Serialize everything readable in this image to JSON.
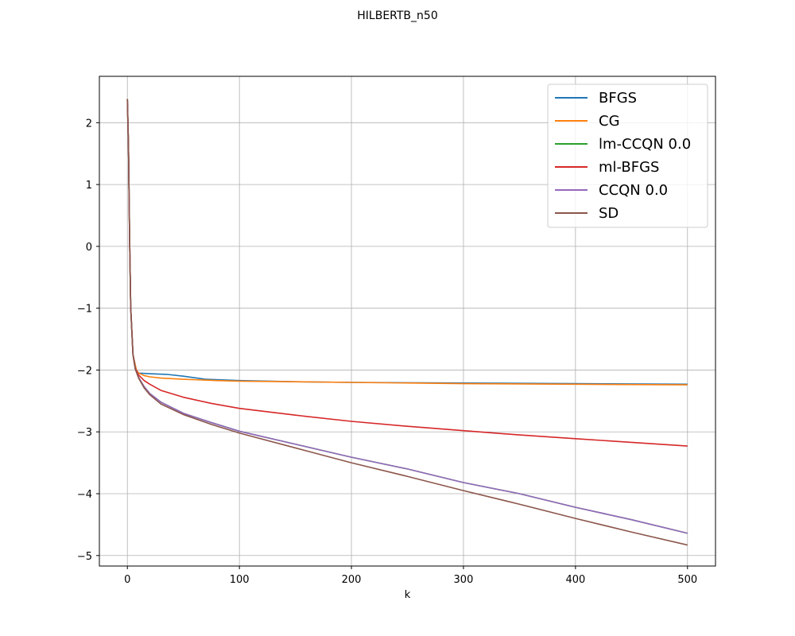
{
  "figure": {
    "title": "HILBERTB_n50"
  },
  "chart_data": {
    "type": "line",
    "title": "HILBERTB_n50",
    "xlabel": "k",
    "ylabel": "",
    "xlim": [
      -25,
      525
    ],
    "ylim": [
      -5.17,
      2.75
    ],
    "xticks": [
      0,
      100,
      200,
      300,
      400,
      500
    ],
    "yticks": [
      -5,
      -4,
      -3,
      -2,
      -1,
      0,
      1,
      2
    ],
    "grid": true,
    "legend_position": "top-right",
    "series": [
      {
        "name": "BFGS",
        "color": "#1f77b4",
        "x": [
          0,
          1,
          2,
          3,
          5,
          8,
          10,
          20,
          35,
          50,
          70,
          100,
          150,
          200,
          300,
          400,
          500
        ],
        "y": [
          2.38,
          1.6,
          0.1,
          -1.0,
          -1.75,
          -2.0,
          -2.05,
          -2.06,
          -2.07,
          -2.1,
          -2.15,
          -2.17,
          -2.19,
          -2.2,
          -2.21,
          -2.22,
          -2.23
        ]
      },
      {
        "name": "CG",
        "color": "#ff7f0e",
        "x": [
          0,
          1,
          2,
          3,
          5,
          8,
          10,
          15,
          20,
          30,
          50,
          80,
          100,
          150,
          200,
          300,
          400,
          500
        ],
        "y": [
          2.38,
          1.6,
          0.1,
          -1.0,
          -1.75,
          -2.0,
          -2.05,
          -2.09,
          -2.11,
          -2.13,
          -2.15,
          -2.17,
          -2.18,
          -2.19,
          -2.2,
          -2.22,
          -2.23,
          -2.24
        ]
      },
      {
        "name": "lm-CCQN 0.0",
        "color": "#2ca02c",
        "x": [
          0,
          1,
          2,
          3,
          5,
          7,
          10,
          15,
          20,
          30,
          50,
          75,
          100,
          150,
          200,
          250,
          300,
          350,
          400,
          450,
          500
        ],
        "y": [
          2.38,
          1.6,
          0.1,
          -1.0,
          -1.75,
          -1.98,
          -2.12,
          -2.27,
          -2.38,
          -2.52,
          -2.7,
          -2.85,
          -2.99,
          -3.2,
          -3.41,
          -3.6,
          -3.82,
          -4.0,
          -4.22,
          -4.42,
          -4.64
        ]
      },
      {
        "name": "ml-BFGS",
        "color": "#d62728",
        "x": [
          0,
          1,
          2,
          3,
          5,
          7,
          10,
          15,
          20,
          30,
          50,
          75,
          100,
          150,
          200,
          250,
          300,
          350,
          400,
          450,
          500
        ],
        "y": [
          2.38,
          1.6,
          0.1,
          -1.0,
          -1.75,
          -1.97,
          -2.08,
          -2.17,
          -2.23,
          -2.33,
          -2.44,
          -2.54,
          -2.62,
          -2.73,
          -2.83,
          -2.91,
          -2.98,
          -3.05,
          -3.11,
          -3.17,
          -3.23
        ]
      },
      {
        "name": "CCQN 0.0",
        "color": "#9467bd",
        "x": [
          0,
          1,
          2,
          3,
          5,
          7,
          10,
          15,
          20,
          30,
          50,
          75,
          100,
          150,
          200,
          250,
          300,
          350,
          400,
          450,
          500
        ],
        "y": [
          2.38,
          1.6,
          0.1,
          -1.0,
          -1.75,
          -1.98,
          -2.12,
          -2.27,
          -2.38,
          -2.52,
          -2.7,
          -2.85,
          -2.99,
          -3.2,
          -3.41,
          -3.6,
          -3.82,
          -4.0,
          -4.22,
          -4.42,
          -4.64
        ]
      },
      {
        "name": "SD",
        "color": "#8c564b",
        "x": [
          0,
          1,
          2,
          3,
          5,
          7,
          10,
          15,
          20,
          30,
          50,
          75,
          100,
          150,
          200,
          250,
          300,
          350,
          400,
          450,
          500
        ],
        "y": [
          2.38,
          1.6,
          0.1,
          -1.0,
          -1.75,
          -1.98,
          -2.13,
          -2.29,
          -2.4,
          -2.55,
          -2.72,
          -2.88,
          -3.02,
          -3.26,
          -3.5,
          -3.72,
          -3.95,
          -4.17,
          -4.4,
          -4.62,
          -4.83
        ]
      }
    ]
  }
}
